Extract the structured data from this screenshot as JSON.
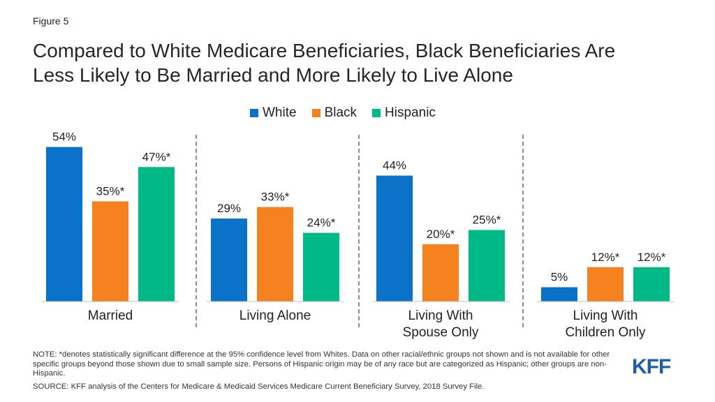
{
  "header": {
    "figure_label": "Figure 5",
    "title": "Compared to White Medicare Beneficiaries, Black Beneficiaries Are\nLess Likely to Be Married and More Likely to Live Alone"
  },
  "colors": {
    "white": "#0b72c9",
    "black": "#f5821f",
    "hispanic": "#00b986",
    "divider": "#8c8c8c"
  },
  "chart_data": {
    "type": "bar",
    "categories": [
      "Married",
      "Living Alone",
      "Living With\nSpouse Only",
      "Living With\nChildren Only"
    ],
    "series": [
      {
        "name": "White",
        "values": [
          54,
          29,
          44,
          5
        ],
        "labels": [
          "54%",
          "29%",
          "44%",
          "5%"
        ]
      },
      {
        "name": "Black",
        "values": [
          35,
          33,
          20,
          12
        ],
        "labels": [
          "35%*",
          "33%*",
          "20%*",
          "12%*"
        ]
      },
      {
        "name": "Hispanic",
        "values": [
          47,
          24,
          25,
          12
        ],
        "labels": [
          "47%*",
          "24%*",
          "25%*",
          "12%*"
        ]
      }
    ],
    "ylim": [
      0,
      60
    ],
    "legend": "top-center",
    "grid": false
  },
  "footer": {
    "note": "NOTE: *denotes statistically significant difference at the 95% confidence level from Whites. Data on other racial/ethnic groups not shown and is not available for other specific groups beyond those shown due to small sample size. Persons of Hispanic origin may be of any race but are categorized as Hispanic; other groups are non-Hispanic.",
    "source": "SOURCE: KFF analysis of the Centers for Medicare & Medicaid Services Medicare Current Beneficiary Survey, 2018 Survey File.",
    "logo_text": "KFF"
  }
}
